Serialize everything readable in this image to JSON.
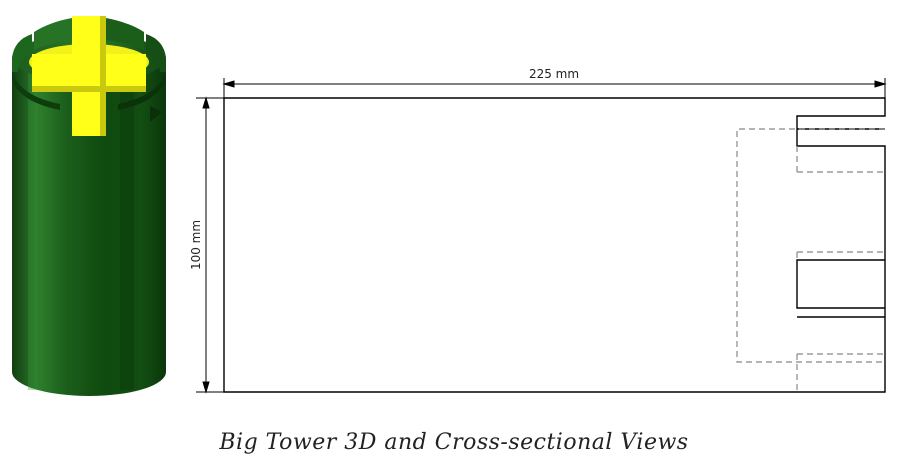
{
  "drawing": {
    "width_label": "225 mm",
    "height_label": "100 mm"
  },
  "caption": "Big Tower 3D and Cross-sectional Views",
  "colors": {
    "tower_dark": "#0f4a0f",
    "tower_mid": "#1e6b1e",
    "tower_light": "#2f8a2f",
    "tower_inner": "#ffff1a",
    "line": "#000000",
    "dashed_line": "#777777"
  }
}
